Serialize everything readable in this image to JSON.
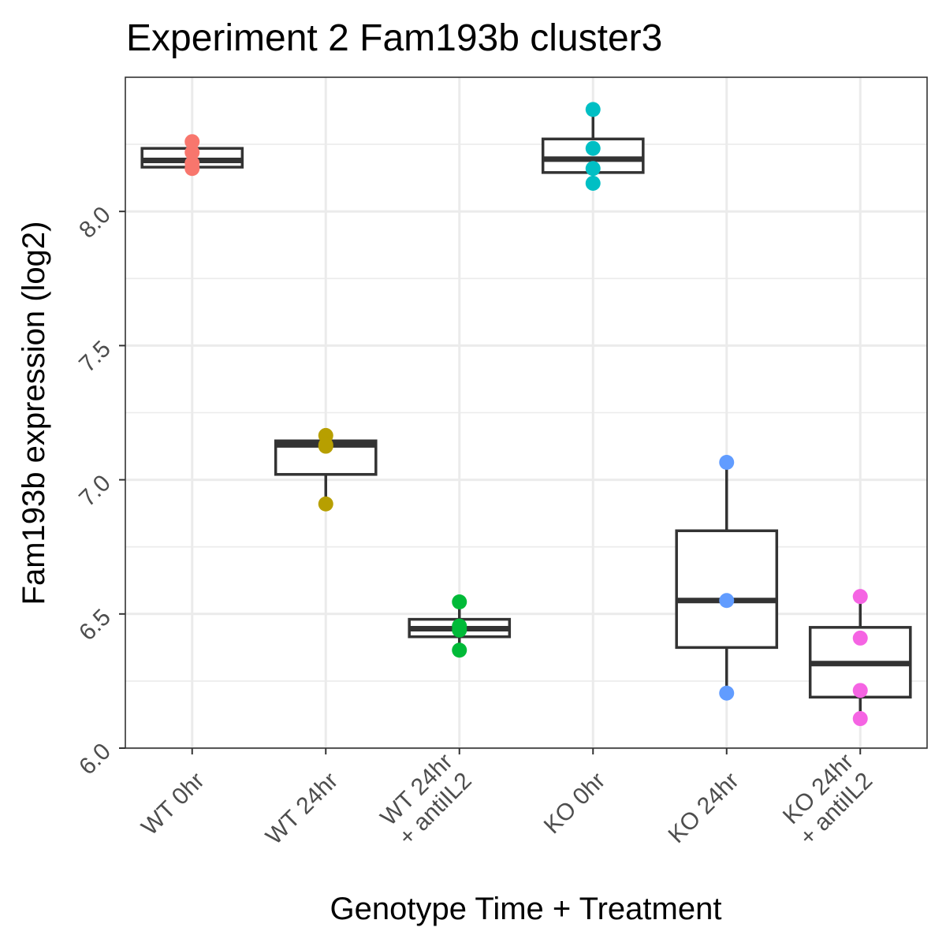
{
  "chart_data": {
    "type": "boxplot",
    "title": "Experiment 2 Fam193b cluster3",
    "xlabel": "Genotype Time + Treatment",
    "ylabel": "Fam193b expression (log2)",
    "ylim": [
      6.0,
      8.5
    ],
    "y_ticks": [
      "6.0",
      "6.5",
      "7.0",
      "7.5",
      "8.0"
    ],
    "grid": true,
    "legend": "none",
    "categories": [
      {
        "label_lines": [
          "WT 0hr"
        ],
        "color": "#F8766D",
        "box": {
          "lower_whisker": 8.16,
          "q1": 8.165,
          "median": 8.19,
          "q3": 8.235,
          "upper_whisker": 8.26
        },
        "points": [
          8.26,
          8.22,
          8.18,
          8.16
        ]
      },
      {
        "label_lines": [
          "WT 24hr"
        ],
        "color": "#B79F00",
        "box": {
          "lower_whisker": 6.91,
          "q1": 7.02,
          "median": 7.13,
          "q3": 7.145,
          "upper_whisker": 7.165
        },
        "points": [
          7.165,
          7.13,
          7.125,
          6.91
        ]
      },
      {
        "label_lines": [
          "WT 24hr",
          "+ antiIL2"
        ],
        "color": "#00BA38",
        "box": {
          "lower_whisker": 6.365,
          "q1": 6.415,
          "median": 6.445,
          "q3": 6.48,
          "upper_whisker": 6.545
        },
        "points": [
          6.545,
          6.455,
          6.44,
          6.365
        ]
      },
      {
        "label_lines": [
          "KO 0hr"
        ],
        "color": "#00BFC4",
        "box": {
          "lower_whisker": 8.105,
          "q1": 8.145,
          "median": 8.195,
          "q3": 8.27,
          "upper_whisker": 8.38
        },
        "points": [
          8.38,
          8.235,
          8.16,
          8.105
        ]
      },
      {
        "label_lines": [
          "KO 24hr"
        ],
        "color": "#619CFF",
        "box": {
          "lower_whisker": 6.205,
          "q1": 6.375,
          "median": 6.55,
          "q3": 6.81,
          "upper_whisker": 7.065
        },
        "points": [
          7.065,
          6.55,
          6.205
        ]
      },
      {
        "label_lines": [
          "KO 24hr",
          "+ antiIL2"
        ],
        "color": "#F564E3",
        "box": {
          "lower_whisker": 6.11,
          "q1": 6.19,
          "median": 6.315,
          "q3": 6.45,
          "upper_whisker": 6.565
        },
        "points": [
          6.565,
          6.41,
          6.215,
          6.11
        ]
      }
    ]
  }
}
